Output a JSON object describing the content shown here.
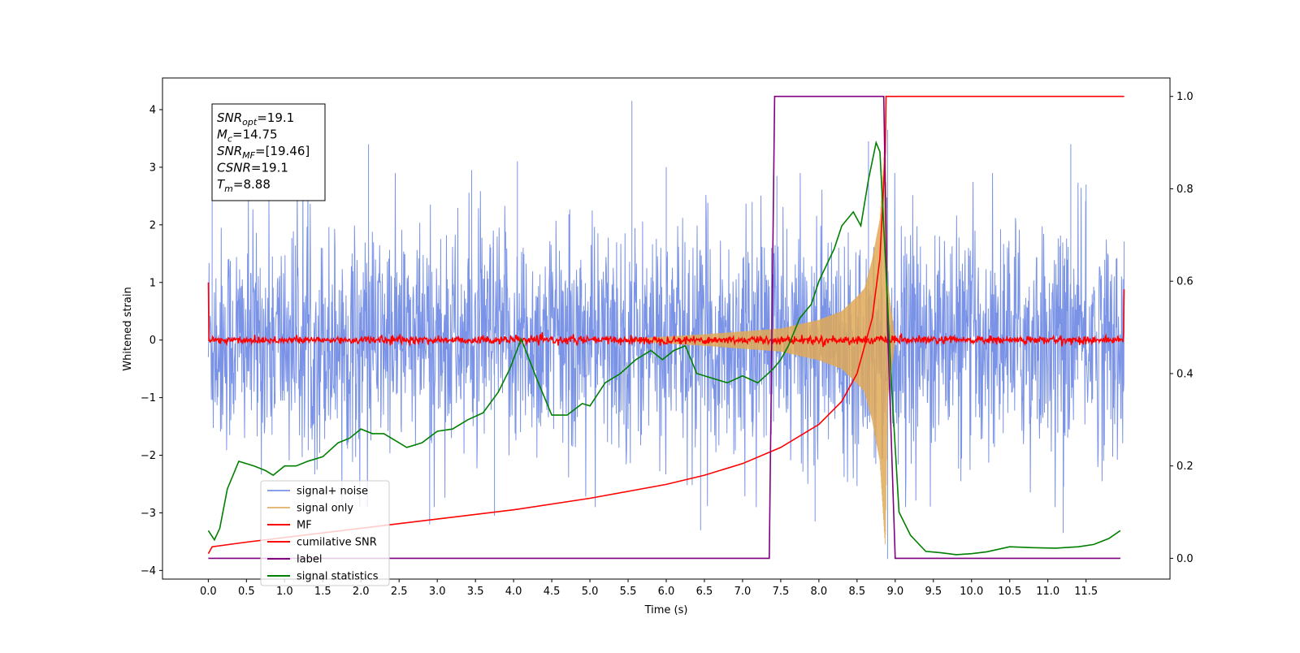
{
  "chart_data": {
    "type": "line",
    "xlabel": "Time (s)",
    "ylabel": "Whitened strain",
    "xlim": [
      -0.6,
      12.6
    ],
    "ylim": [
      -4.15,
      4.55
    ],
    "y2lim": [
      -0.045,
      1.04
    ],
    "x_ticks": [
      0.0,
      0.5,
      1.0,
      1.5,
      2.0,
      2.5,
      3.0,
      3.5,
      4.0,
      4.5,
      5.0,
      5.5,
      6.0,
      6.5,
      7.0,
      7.5,
      8.0,
      8.5,
      9.0,
      9.5,
      10.0,
      10.5,
      11.0,
      11.5
    ],
    "x_tick_labels": [
      "0.0",
      "0.5",
      "1.0",
      "1.5",
      "2.0",
      "2.5",
      "3.0",
      "3.5",
      "4.0",
      "4.5",
      "5.0",
      "5.5",
      "6.0",
      "6.5",
      "7.0",
      "7.5",
      "8.0",
      "8.5",
      "9.0",
      "9.5",
      "10.0",
      "10.5",
      "11.0",
      "11.5"
    ],
    "y_ticks": [
      -4,
      -3,
      -2,
      -1,
      0,
      1,
      2,
      3,
      4
    ],
    "y_tick_labels": [
      "−4",
      "−3",
      "−2",
      "−1",
      "0",
      "1",
      "2",
      "3",
      "4"
    ],
    "y2_ticks": [
      0.0,
      0.2,
      0.4,
      0.6,
      0.8,
      1.0
    ],
    "y2_tick_labels": [
      "0.0",
      "0.2",
      "0.4",
      "0.6",
      "0.8",
      "1.0"
    ],
    "legend_position": "lower-left",
    "series": [
      {
        "name": "signal+ noise",
        "color": "#6b87e3",
        "axis": "left",
        "style": "dense noise, roughly ±1.5 with spikes to ±3.5",
        "x": [
          0.0,
          12.0
        ],
        "amplitude": 1.55,
        "spikes": [
          [
            0.05,
            3.4
          ],
          [
            2.1,
            3.4
          ],
          [
            3.45,
            2.95
          ],
          [
            4.05,
            3.1
          ],
          [
            5.55,
            4.15
          ],
          [
            6.0,
            3.0
          ],
          [
            7.45,
            2.85
          ],
          [
            8.65,
            3.45
          ],
          [
            8.9,
            3.65
          ],
          [
            11.3,
            3.4
          ],
          [
            11.5,
            2.7
          ],
          [
            3.75,
            -3.05
          ],
          [
            6.45,
            -3.3
          ],
          [
            7.95,
            -3.15
          ],
          [
            8.9,
            -3.8
          ],
          [
            11.2,
            -3.35
          ],
          [
            2.9,
            -3.2
          ]
        ]
      },
      {
        "name": "signal only",
        "color": "#e0a957",
        "axis": "left",
        "style": "chirp with growing envelope up to merger",
        "x": [
          5.5,
          6.5,
          7.0,
          7.5,
          8.0,
          8.3,
          8.5,
          8.6,
          8.7,
          8.8,
          8.87,
          8.9,
          9.0
        ],
        "envelope": [
          0.02,
          0.1,
          0.15,
          0.2,
          0.35,
          0.5,
          0.75,
          0.9,
          1.4,
          2.1,
          3.6,
          1.0,
          0.0
        ]
      },
      {
        "name": "MF",
        "color": "#ff0000",
        "axis": "left",
        "style": "thin noise around zero, roughly ±0.08",
        "x": [
          0.0,
          12.0
        ],
        "amplitude": 0.07,
        "edges": [
          [
            0.0,
            1.0
          ],
          [
            12.0,
            0.88
          ]
        ]
      },
      {
        "name": "cumilative SNR",
        "color": "#ff0000",
        "axis": "right",
        "x": [
          0.0,
          0.05,
          0.5,
          1.0,
          2.0,
          3.0,
          4.0,
          5.0,
          5.5,
          6.0,
          6.5,
          7.0,
          7.5,
          8.0,
          8.3,
          8.5,
          8.7,
          8.8,
          8.87,
          8.88,
          12.0
        ],
        "y": [
          0.01,
          0.025,
          0.035,
          0.045,
          0.065,
          0.085,
          0.105,
          0.13,
          0.145,
          0.16,
          0.18,
          0.205,
          0.24,
          0.29,
          0.34,
          0.4,
          0.52,
          0.65,
          0.88,
          1.0,
          1.0
        ]
      },
      {
        "name": "label",
        "color": "#800080",
        "axis": "right",
        "x": [
          0.0,
          7.35,
          7.42,
          8.85,
          8.9,
          9.0,
          11.95
        ],
        "y": [
          0.0,
          0.0,
          1.0,
          1.0,
          0.5,
          0.0,
          0.0
        ]
      },
      {
        "name": "signal statistics",
        "color": "#008000",
        "axis": "right",
        "x": [
          0.0,
          0.08,
          0.15,
          0.25,
          0.4,
          0.6,
          0.75,
          0.85,
          1.0,
          1.15,
          1.3,
          1.5,
          1.7,
          1.85,
          2.0,
          2.15,
          2.3,
          2.5,
          2.6,
          2.8,
          3.0,
          3.2,
          3.4,
          3.6,
          3.8,
          3.95,
          4.1,
          4.3,
          4.5,
          4.7,
          4.9,
          5.0,
          5.2,
          5.4,
          5.6,
          5.8,
          5.95,
          6.1,
          6.25,
          6.4,
          6.6,
          6.8,
          7.0,
          7.2,
          7.4,
          7.5,
          7.6,
          7.75,
          7.9,
          8.0,
          8.2,
          8.3,
          8.45,
          8.55,
          8.65,
          8.75,
          8.8,
          8.88,
          8.95,
          9.05,
          9.2,
          9.4,
          9.6,
          9.8,
          10.0,
          10.2,
          10.5,
          10.8,
          11.1,
          11.4,
          11.6,
          11.8,
          11.95
        ],
        "y": [
          0.06,
          0.04,
          0.065,
          0.15,
          0.21,
          0.2,
          0.19,
          0.18,
          0.2,
          0.2,
          0.21,
          0.22,
          0.25,
          0.26,
          0.28,
          0.27,
          0.27,
          0.25,
          0.24,
          0.25,
          0.275,
          0.28,
          0.3,
          0.315,
          0.36,
          0.41,
          0.475,
          0.39,
          0.31,
          0.31,
          0.335,
          0.33,
          0.38,
          0.4,
          0.43,
          0.45,
          0.43,
          0.45,
          0.46,
          0.4,
          0.39,
          0.38,
          0.395,
          0.38,
          0.41,
          0.43,
          0.46,
          0.52,
          0.55,
          0.6,
          0.67,
          0.72,
          0.75,
          0.72,
          0.82,
          0.9,
          0.88,
          0.62,
          0.38,
          0.1,
          0.05,
          0.015,
          0.012,
          0.008,
          0.01,
          0.014,
          0.025,
          0.023,
          0.022,
          0.025,
          0.03,
          0.043,
          0.06
        ]
      }
    ],
    "annotation": [
      {
        "main": "SNR",
        "sub": "opt",
        "value": "=19.1"
      },
      {
        "main": "M",
        "sub": "c",
        "value": "=14.75"
      },
      {
        "main": "SNR",
        "sub": "MF",
        "value": "=[19.46]"
      },
      {
        "main": "CSNR",
        "sub": "",
        "value": "=19.1"
      },
      {
        "main": "T",
        "sub": "m",
        "value": "=8.88"
      }
    ]
  }
}
